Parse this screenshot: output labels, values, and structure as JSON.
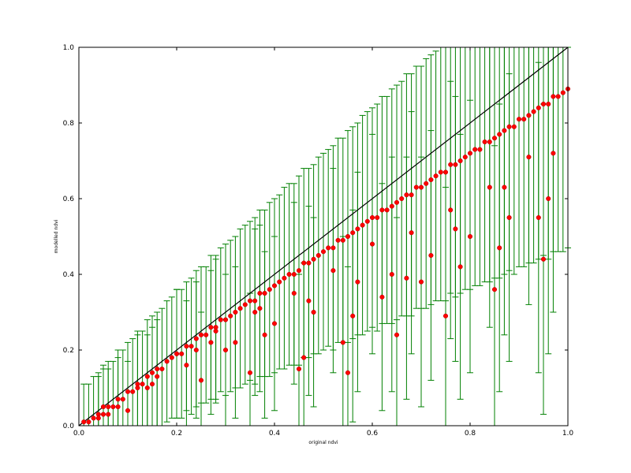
{
  "chart_data": {
    "type": "scatter",
    "title": "",
    "xlabel": "original ndvi",
    "ylabel": "modelled ndvi",
    "xlim": [
      0.0,
      1.0
    ],
    "ylim": [
      0.0,
      1.0
    ],
    "x_ticks": [
      "0.0",
      "0.2",
      "0.4",
      "0.6",
      "0.8",
      "1.0"
    ],
    "y_ticks": [
      "0.0",
      "0.2",
      "0.4",
      "0.6",
      "0.8",
      "1.0"
    ],
    "grid": false,
    "reference_line": {
      "x": [
        0.0,
        1.0
      ],
      "y": [
        0.0,
        1.0
      ],
      "color": "#000000"
    },
    "point_color": "#ff0000",
    "errorbar_color": "#008000",
    "series": [
      {
        "x": [
          0.01,
          0.02,
          0.03,
          0.04,
          0.05,
          0.06,
          0.07,
          0.08,
          0.09,
          0.1,
          0.11,
          0.12,
          0.13,
          0.14,
          0.15,
          0.16,
          0.17,
          0.18,
          0.19,
          0.2,
          0.21,
          0.22,
          0.23,
          0.24,
          0.25,
          0.26,
          0.27,
          0.28,
          0.29,
          0.3,
          0.31,
          0.32,
          0.33,
          0.34,
          0.35,
          0.36,
          0.37,
          0.38,
          0.39,
          0.4,
          0.41,
          0.42,
          0.43,
          0.44,
          0.45,
          0.46,
          0.47,
          0.48,
          0.49,
          0.5,
          0.51,
          0.52,
          0.53,
          0.54,
          0.55,
          0.56,
          0.57,
          0.58,
          0.59,
          0.6,
          0.61,
          0.62,
          0.63,
          0.64,
          0.65,
          0.66,
          0.67,
          0.68,
          0.69,
          0.7,
          0.71,
          0.72,
          0.73,
          0.74,
          0.75,
          0.76,
          0.77,
          0.78,
          0.79,
          0.8,
          0.81,
          0.82,
          0.83,
          0.84,
          0.85,
          0.86,
          0.87,
          0.88,
          0.89,
          0.9,
          0.91,
          0.92,
          0.93,
          0.94,
          0.95,
          0.96,
          0.97,
          0.98,
          0.99,
          1.0,
          0.04,
          0.08,
          0.12,
          0.16,
          0.2,
          0.24,
          0.28,
          0.32,
          0.36,
          0.4,
          0.44,
          0.48,
          0.52,
          0.56,
          0.6,
          0.64,
          0.68,
          0.72,
          0.76,
          0.8,
          0.84,
          0.88,
          0.92,
          0.96,
          0.06,
          0.14,
          0.22,
          0.3,
          0.38,
          0.46,
          0.54,
          0.62,
          0.7,
          0.78,
          0.86,
          0.94,
          0.1,
          0.25,
          0.35,
          0.45,
          0.55,
          0.65,
          0.75,
          0.85,
          0.95,
          0.05,
          0.15,
          0.27,
          0.37,
          0.47,
          0.57,
          0.67,
          0.77,
          0.87,
          0.97
        ],
        "y": [
          0.01,
          0.01,
          0.02,
          0.03,
          0.03,
          0.05,
          0.05,
          0.07,
          0.07,
          0.09,
          0.09,
          0.11,
          0.11,
          0.13,
          0.14,
          0.15,
          0.15,
          0.17,
          0.18,
          0.19,
          0.19,
          0.21,
          0.21,
          0.23,
          0.24,
          0.24,
          0.26,
          0.26,
          0.28,
          0.28,
          0.29,
          0.3,
          0.31,
          0.32,
          0.33,
          0.33,
          0.35,
          0.35,
          0.36,
          0.37,
          0.38,
          0.39,
          0.4,
          0.4,
          0.41,
          0.43,
          0.43,
          0.44,
          0.45,
          0.46,
          0.47,
          0.47,
          0.49,
          0.49,
          0.5,
          0.51,
          0.52,
          0.53,
          0.54,
          0.55,
          0.55,
          0.57,
          0.57,
          0.58,
          0.59,
          0.6,
          0.61,
          0.61,
          0.63,
          0.63,
          0.64,
          0.65,
          0.66,
          0.67,
          0.67,
          0.69,
          0.69,
          0.7,
          0.71,
          0.72,
          0.73,
          0.73,
          0.75,
          0.75,
          0.76,
          0.77,
          0.78,
          0.79,
          0.79,
          0.81,
          0.81,
          0.82,
          0.83,
          0.84,
          0.85,
          0.85,
          0.87,
          0.87,
          0.88,
          0.89,
          0.02,
          0.05,
          0.1,
          0.13,
          0.19,
          0.2,
          0.25,
          0.22,
          0.3,
          0.27,
          0.35,
          0.3,
          0.41,
          0.29,
          0.48,
          0.4,
          0.51,
          0.45,
          0.57,
          0.5,
          0.63,
          0.55,
          0.71,
          0.6,
          0.03,
          0.1,
          0.16,
          0.2,
          0.24,
          0.18,
          0.22,
          0.34,
          0.38,
          0.42,
          0.47,
          0.55,
          0.04,
          0.12,
          0.14,
          0.15,
          0.14,
          0.24,
          0.29,
          0.36,
          0.44,
          0.05,
          0.11,
          0.22,
          0.31,
          0.33,
          0.38,
          0.39,
          0.52,
          0.63,
          0.72
        ],
        "err": [
          0.1,
          0.1,
          0.11,
          0.11,
          0.12,
          0.12,
          0.12,
          0.13,
          0.13,
          0.13,
          0.14,
          0.14,
          0.14,
          0.15,
          0.15,
          0.15,
          0.16,
          0.16,
          0.16,
          0.17,
          0.17,
          0.17,
          0.18,
          0.18,
          0.18,
          0.18,
          0.19,
          0.19,
          0.19,
          0.2,
          0.2,
          0.2,
          0.21,
          0.21,
          0.21,
          0.22,
          0.22,
          0.22,
          0.23,
          0.23,
          0.23,
          0.24,
          0.24,
          0.24,
          0.25,
          0.25,
          0.25,
          0.25,
          0.26,
          0.26,
          0.26,
          0.27,
          0.27,
          0.27,
          0.28,
          0.28,
          0.28,
          0.29,
          0.29,
          0.29,
          0.3,
          0.3,
          0.3,
          0.31,
          0.31,
          0.31,
          0.32,
          0.32,
          0.32,
          0.32,
          0.33,
          0.33,
          0.33,
          0.34,
          0.34,
          0.34,
          0.35,
          0.35,
          0.35,
          0.36,
          0.36,
          0.36,
          0.37,
          0.37,
          0.37,
          0.38,
          0.38,
          0.38,
          0.39,
          0.39,
          0.39,
          0.39,
          0.4,
          0.4,
          0.4,
          0.41,
          0.41,
          0.41,
          0.42,
          0.42,
          0.11,
          0.13,
          0.14,
          0.15,
          0.17,
          0.18,
          0.19,
          0.2,
          0.22,
          0.23,
          0.24,
          0.25,
          0.27,
          0.28,
          0.29,
          0.31,
          0.32,
          0.33,
          0.34,
          0.36,
          0.37,
          0.38,
          0.39,
          0.41,
          0.12,
          0.14,
          0.17,
          0.2,
          0.22,
          0.25,
          0.28,
          0.3,
          0.33,
          0.35,
          0.38,
          0.41,
          0.13,
          0.18,
          0.21,
          0.25,
          0.28,
          0.31,
          0.34,
          0.38,
          0.41,
          0.11,
          0.15,
          0.19,
          0.22,
          0.25,
          0.29,
          0.32,
          0.35,
          0.39,
          0.42
        ]
      }
    ]
  }
}
